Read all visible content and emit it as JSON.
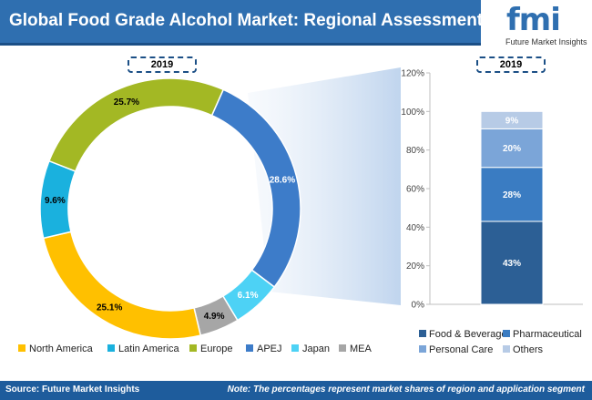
{
  "title": "Global Food Grade Alcohol Market: Regional Assessment",
  "logo": {
    "word": "fmi",
    "subtitle": "Future Market Insights"
  },
  "chart_data": [
    {
      "type": "pie",
      "variant": "donut",
      "year": "2019",
      "categories": [
        "APEJ",
        "Japan",
        "MEA",
        "North America",
        "Latin America",
        "Europe"
      ],
      "values": [
        28.6,
        6.1,
        4.9,
        25.1,
        9.6,
        25.7
      ],
      "labels": [
        "28.6%",
        "6.1%",
        "4.9%",
        "25.1%",
        "9.6%",
        "25.7%"
      ],
      "colors": [
        "#3d7cc9",
        "#4dd2f5",
        "#a6a6a6",
        "#ffc000",
        "#1ab1de",
        "#a3b824"
      ],
      "legend": [
        "North America",
        "Latin America",
        "Europe",
        "APEJ",
        "Japan",
        "MEA"
      ],
      "legend_placement": "bottom"
    },
    {
      "type": "bar",
      "variant": "stacked-100",
      "year": "2019",
      "categories": [
        "2019"
      ],
      "series": [
        {
          "name": "Food & Beverage",
          "values": [
            43
          ],
          "label": "43%",
          "color": "#2c5f95"
        },
        {
          "name": "Pharmaceutical",
          "values": [
            28
          ],
          "label": "28%",
          "color": "#3a7cc2"
        },
        {
          "name": "Personal Care",
          "values": [
            20
          ],
          "label": "20%",
          "color": "#7ba5d8"
        },
        {
          "name": "Others",
          "values": [
            9
          ],
          "label": "9%",
          "color": "#b7cbe6"
        }
      ],
      "yticks": [
        "0%",
        "20%",
        "40%",
        "60%",
        "80%",
        "100%",
        "120%"
      ],
      "ylim": [
        0,
        120
      ],
      "grid": false,
      "legend_placement": "bottom"
    }
  ],
  "footer": {
    "source": "Source: Future Market Insights",
    "note": "Note: The percentages represent market shares of region and application segment"
  }
}
